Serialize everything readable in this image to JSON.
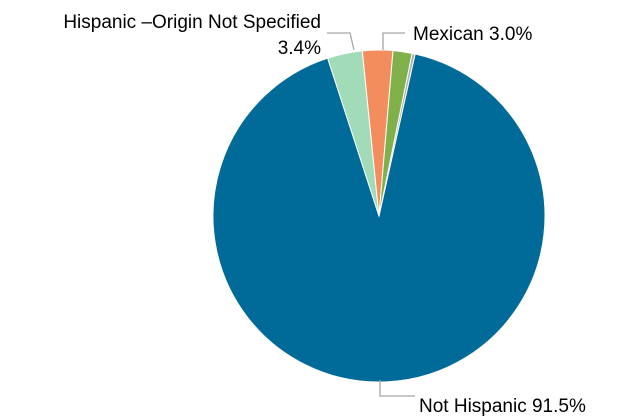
{
  "chart_data": {
    "type": "pie",
    "title": "",
    "slices": [
      {
        "name": "Not Hispanic",
        "label": "Not Hispanic 91.5%",
        "value": 91.5,
        "color": "#006a99"
      },
      {
        "name": "Hispanic –Origin Not Specified",
        "label_line1": "Hispanic –Origin Not Specified",
        "label_line2": "3.4%",
        "value": 3.4,
        "color": "#a1dbb8"
      },
      {
        "name": "Unlabeled segment (orange)",
        "value": 2.95,
        "color": "#f48d5d"
      },
      {
        "name": "Unlabeled segment (green)",
        "value": 1.85,
        "color": "#7fb04a"
      },
      {
        "name": "Unlabeled segment (thin)",
        "value": 0.3,
        "color": "#b0b0b0"
      }
    ],
    "labels": {
      "not_hispanic": "Not Hispanic 91.5%",
      "origin_not_specified_line1": "Hispanic –Origin Not Specified",
      "origin_not_specified_line2": "3.4%",
      "mexican": "Mexican 3.0%"
    },
    "legend": "none"
  }
}
